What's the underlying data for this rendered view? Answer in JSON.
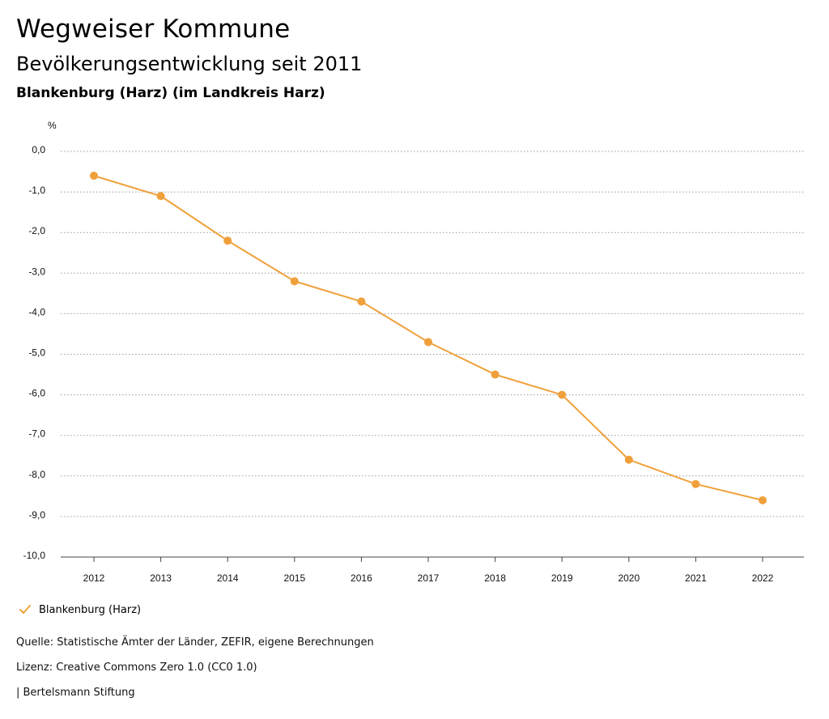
{
  "header": {
    "title": "Wegweiser Kommune",
    "subtitle": "Bevölkerungsentwicklung seit 2011",
    "region": "Blankenburg (Harz) (im Landkreis Harz)"
  },
  "chart_data": {
    "type": "line",
    "ylabel": "%",
    "ylim": [
      -10,
      0
    ],
    "ytick_labels": [
      "0,0",
      "-1,0",
      "-2,0",
      "-3,0",
      "-4,0",
      "-5,0",
      "-6,0",
      "-7,0",
      "-8,0",
      "-9,0",
      "-10,0"
    ],
    "ytick_values": [
      0,
      -1,
      -2,
      -3,
      -4,
      -5,
      -6,
      -7,
      -8,
      -9,
      -10
    ],
    "categories": [
      "2012",
      "2013",
      "2014",
      "2015",
      "2016",
      "2017",
      "2018",
      "2019",
      "2020",
      "2021",
      "2022"
    ],
    "series": [
      {
        "name": "Blankenburg (Harz)",
        "color": "#f0a03a",
        "values": [
          -0.6,
          -1.1,
          -2.2,
          -3.2,
          -3.7,
          -4.7,
          -5.5,
          -6.0,
          -7.6,
          -8.2,
          -8.6
        ]
      }
    ],
    "grid": "horizontal dotted",
    "legend_position": "bottom-left"
  },
  "footer": {
    "source": "Quelle: Statistische Ämter der Länder, ZEFIR, eigene Berechnungen",
    "license": "Lizenz: Creative Commons Zero 1.0 (CC0 1.0)",
    "publisher": "| Bertelsmann Stiftung"
  },
  "colors": {
    "accent": "#f0a03a",
    "grid": "#999999"
  }
}
